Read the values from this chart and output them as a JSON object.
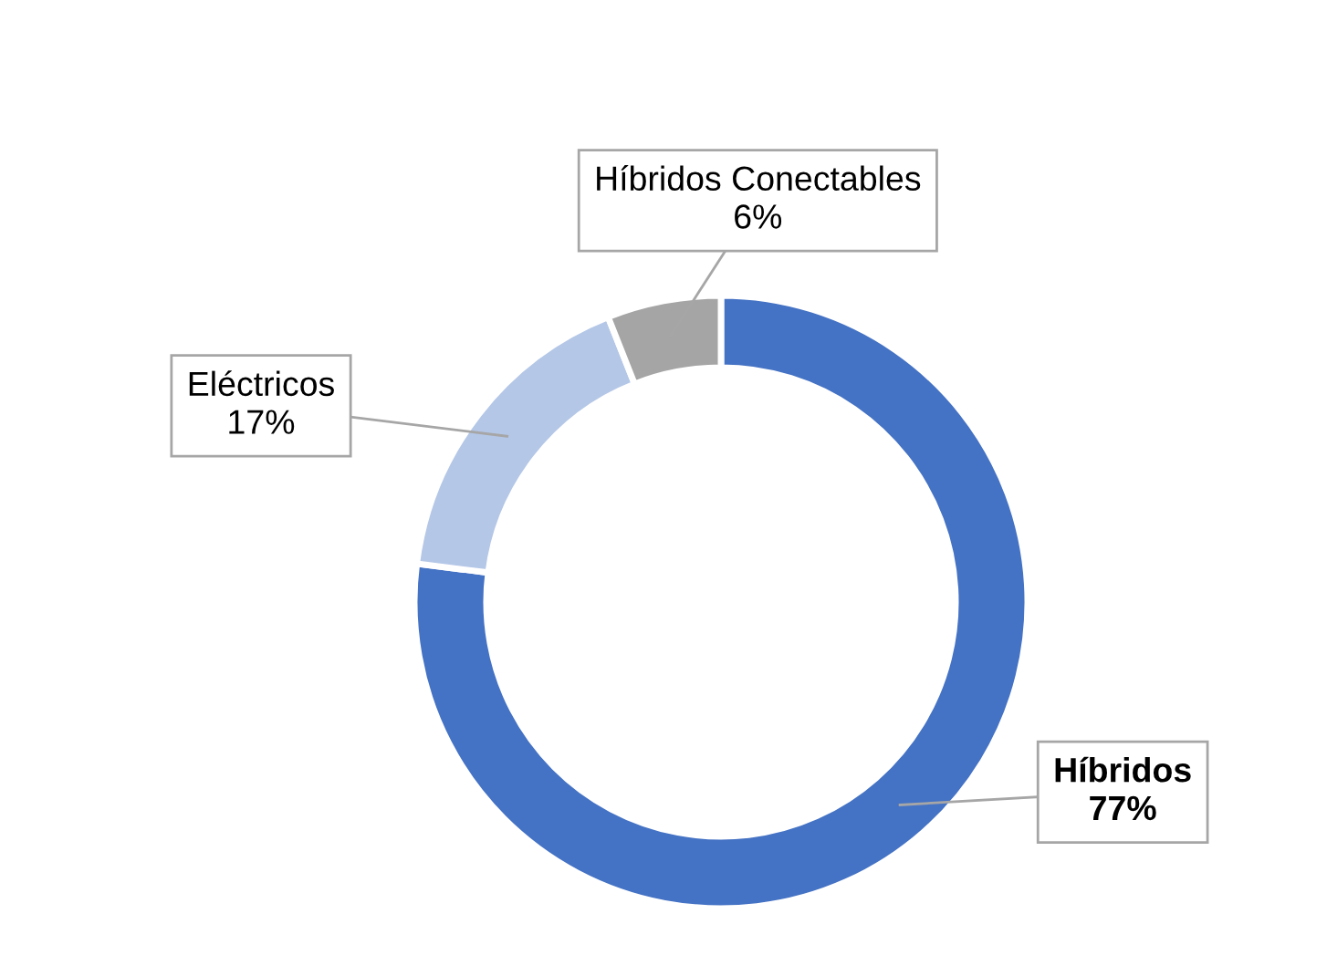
{
  "chart_data": {
    "type": "donut",
    "categories": [
      "Híbridos",
      "Eléctricos",
      "Híbridos Conectables"
    ],
    "values": [
      77,
      17,
      6
    ],
    "value_labels": [
      "77%",
      "17%",
      "6%"
    ],
    "colors": [
      "#4472c4",
      "#b4c7e7",
      "#a5a5a5"
    ],
    "legend": false
  }
}
